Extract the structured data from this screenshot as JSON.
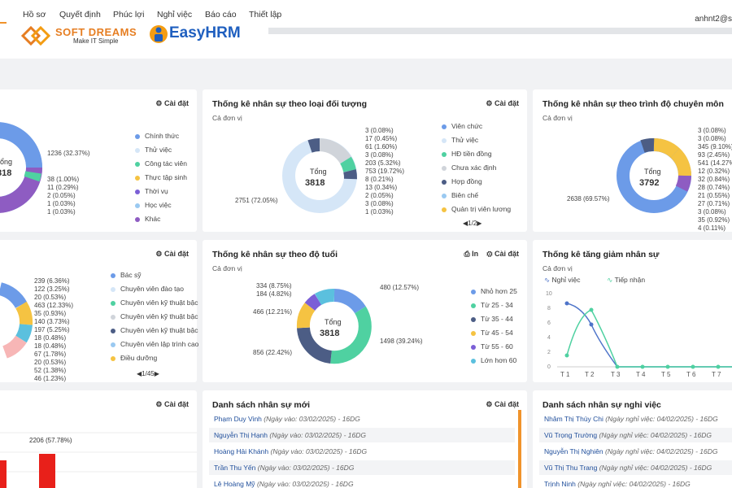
{
  "nav": {
    "items": [
      "Hồ sơ",
      "Quyết định",
      "Phúc lợi",
      "Nghỉ việc",
      "Báo cáo",
      "Thiết lập"
    ],
    "user": "anhnt2@s"
  },
  "logos": {
    "softdreams": "SOFT DREAMS",
    "softdreams_tagline": "Make IT Simple",
    "easyhrm": "EasyHRM"
  },
  "common": {
    "settings_label": "Cài đặt",
    "unit_label": "Cả đơn vị",
    "print_label": "In",
    "total_label": "Tổng"
  },
  "card1": {
    "total": "818",
    "total_label": "ổng",
    "labels": [
      "1236 (32.37%)",
      "38 (1.00%)",
      "11 (0.29%)",
      "2 (0.05%)",
      "1 (0.03%)",
      "1 (0.03%)"
    ],
    "legend": [
      {
        "label": "Chính thức",
        "color": "#6c9be8"
      },
      {
        "label": "Thử việc",
        "color": "#d5e6f7"
      },
      {
        "label": "Công tác viên",
        "color": "#4fd1a1"
      },
      {
        "label": "Thực tập sinh",
        "color": "#f5c342"
      },
      {
        "label": "Thời vụ",
        "color": "#7b5fd6"
      },
      {
        "label": "Học việc",
        "color": "#9ac9f1"
      },
      {
        "label": "Khác",
        "color": "#8e5cc2"
      }
    ]
  },
  "card2": {
    "title": "Thống kê nhân sự theo loại đối tượng",
    "total": "3818",
    "labels_right": [
      "3 (0.08%)",
      "17 (0.45%)",
      "61 (1.60%)",
      "3 (0.08%)",
      "203 (5.32%)",
      "753 (19.72%)",
      "8 (0.21%)",
      "13 (0.34%)",
      "2 (0.05%)",
      "3 (0.08%)",
      "1 (0.03%)"
    ],
    "label_left": "2751 (72.05%)",
    "legend": [
      {
        "label": "Viên chức",
        "color": "#6c9be8"
      },
      {
        "label": "Thử việc",
        "color": "#d5e6f7"
      },
      {
        "label": "HĐ tiền đồng",
        "color": "#4fd1a1"
      },
      {
        "label": "Chưa xác định",
        "color": "#d0d4da"
      },
      {
        "label": "Hợp đồng",
        "color": "#4c5d85"
      },
      {
        "label": "Biên chế",
        "color": "#9ac9f1"
      },
      {
        "label": "Quản trị viên lương",
        "color": "#f5c342"
      }
    ],
    "pager": "1/2"
  },
  "card3": {
    "title": "Thống kê nhân sự theo trình độ chuyên môn",
    "total": "3792",
    "labels_right": [
      "3 (0.08%)",
      "3 (0.08%)",
      "345 (9.10%)",
      "93 (2.45%)",
      "541 (14.27%)",
      "12 (0.32%)",
      "32 (0.84%)",
      "28 (0.74%)",
      "21 (0.55%)",
      "27 (0.71%)",
      "3 (0.08%)",
      "35 (0.92%)",
      "4 (0.11%)"
    ],
    "label_left": "2638 (69.57%)"
  },
  "card4": {
    "labels": [
      "239 (6.36%)",
      "122 (3.25%)",
      "20 (0.53%)",
      "463 (12.33%)",
      "35 (0.93%)",
      "140 (3.73%)",
      "197 (5.25%)",
      "18 (0.48%)",
      "18 (0.48%)",
      "67 (1.78%)",
      "20 (0.53%)",
      "52 (1.38%)",
      "46 (1.23%)"
    ],
    "legend": [
      {
        "label": "Bác sỹ",
        "color": "#6c9be8"
      },
      {
        "label": "Chuyên viên đào tạo",
        "color": "#d5e6f7"
      },
      {
        "label": "Chuyên viên kỹ thuật bậc",
        "color": "#4fd1a1"
      },
      {
        "label": "Chuyên viên kỹ thuật bậc",
        "color": "#d0d4da"
      },
      {
        "label": "Chuyên viên kỹ thuật bậc",
        "color": "#4c5d85"
      },
      {
        "label": "Chuyên viên lập trình cao",
        "color": "#9ac9f1"
      },
      {
        "label": "Điều dưỡng",
        "color": "#f5c342"
      }
    ],
    "pager": "1/45"
  },
  "card5": {
    "title": "Thống kê nhân sự theo độ tuổi",
    "total": "3818",
    "labels": [
      "334 (8.75%)",
      "184 (4.82%)",
      "466 (12.21%)",
      "856 (22.42%)",
      "480 (12.57%)",
      "1498 (39.24%)"
    ],
    "legend": [
      {
        "label": "Nhỏ hơn 25",
        "color": "#6c9be8"
      },
      {
        "label": "Từ 25 - 34",
        "color": "#4fd1a1"
      },
      {
        "label": "Từ 35 - 44",
        "color": "#4c5d85"
      },
      {
        "label": "Từ 45 - 54",
        "color": "#f5c342"
      },
      {
        "label": "Từ 55 - 60",
        "color": "#7b5fd6"
      },
      {
        "label": "Lớn hơn 60",
        "color": "#5bc0de"
      }
    ]
  },
  "card6": {
    "title": "Thống kê tăng giảm nhân sự",
    "series_labels": [
      "Nghỉ việc",
      "Tiếp nhận"
    ],
    "x_ticks": [
      "T 1",
      "T 2",
      "T 3",
      "T 4",
      "T 5",
      "T 6",
      "T 7"
    ],
    "y_ticks": [
      "10",
      "8",
      "6",
      "4",
      "2",
      "0"
    ]
  },
  "card7": {
    "bar_label": "2206 (57.78%)"
  },
  "card8": {
    "title": "Danh sách nhân sự mới",
    "rows": [
      {
        "name": "Phạm Duy Vinh",
        "meta": "(Ngày vào: 03/02/2025)",
        "dg": "- 16DG"
      },
      {
        "name": "Nguyễn Thị Hạnh",
        "meta": "(Ngày vào: 03/02/2025)",
        "dg": "- 16DG"
      },
      {
        "name": "Hoàng Hải Khánh",
        "meta": "(Ngày vào: 03/02/2025)",
        "dg": "- 16DG"
      },
      {
        "name": "Trần Thu Yến",
        "meta": "(Ngày vào: 03/02/2025)",
        "dg": "- 16DG"
      },
      {
        "name": "Lê Hoàng Mỹ",
        "meta": "(Ngày vào: 03/02/2025)",
        "dg": "- 16DG"
      }
    ]
  },
  "card9": {
    "title": "Danh sách nhân sự nghỉ việc",
    "rows": [
      {
        "name": "Nhâm Thị Thùy Chi",
        "meta": "(Ngày nghỉ việc: 04/02/2025)",
        "dg": "- 16DG"
      },
      {
        "name": "Vũ Trọng Trường",
        "meta": "(Ngày nghỉ việc: 04/02/2025)",
        "dg": "- 16DG"
      },
      {
        "name": "Nguyễn Thị Nghiên",
        "meta": "(Ngày nghỉ việc: 04/02/2025)",
        "dg": "- 16DG"
      },
      {
        "name": "Vũ Thị Thu Trang",
        "meta": "(Ngày nghỉ việc: 04/02/2025)",
        "dg": "- 16DG"
      },
      {
        "name": "Trịnh Ninh",
        "meta": "(Ngày nghỉ việc: 04/02/2025)",
        "dg": "- 16DG"
      }
    ]
  }
}
